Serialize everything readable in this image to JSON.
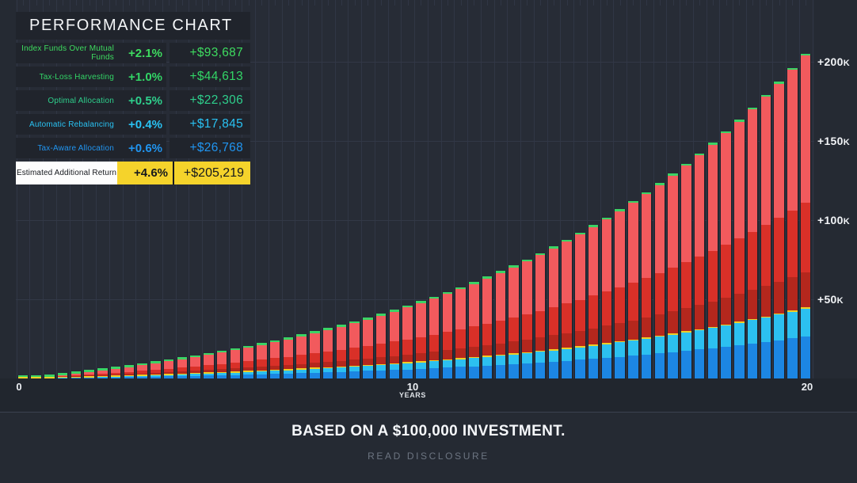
{
  "legend": {
    "title": "PERFORMANCE CHART",
    "rows": [
      {
        "label": "Index Funds Over Mutual Funds",
        "percent": "+2.1%",
        "amount": "+$93,687",
        "color": "#3edc60"
      },
      {
        "label": "Tax-Loss Harvesting",
        "percent": "+1.0%",
        "amount": "+$44,613",
        "color": "#32d566"
      },
      {
        "label": "Optimal Allocation",
        "percent": "+0.5%",
        "amount": "+$22,306",
        "color": "#2ecf8c"
      },
      {
        "label": "Automatic Rebalancing",
        "percent": "+0.4%",
        "amount": "+$17,845",
        "color": "#29c2f3"
      },
      {
        "label": "Tax-Aware Allocation",
        "percent": "+0.6%",
        "amount": "+$26,768",
        "color": "#2095f0"
      }
    ],
    "total_row": {
      "label": "Estimated Additional Return",
      "percent": "+4.6%",
      "amount": "+$205,219",
      "highlight_color": "#f5d32b",
      "label_bg": "#fdfdfd",
      "text_color": "#15181d"
    }
  },
  "chart_data": {
    "type": "bar",
    "stacked": true,
    "title": "PERFORMANCE CHART",
    "xlabel": "YEARS",
    "x_ticks": [
      "0",
      "10",
      "20"
    ],
    "x_range_years": [
      0,
      20
    ],
    "bars_per_year": 3,
    "y_ticks": [
      {
        "label": "+50K",
        "value": 50000
      },
      {
        "label": "+100K",
        "value": 100000
      },
      {
        "label": "+150K",
        "value": 150000
      },
      {
        "label": "+200K",
        "value": 200000
      }
    ],
    "y_range": [
      0,
      239000
    ],
    "dollars_per_pixel": 500,
    "grid": true,
    "legend_position": "top-left",
    "series": [
      {
        "name": "Tax-Aware Allocation",
        "final_value": 26768,
        "color": "#1c86e3"
      },
      {
        "name": "Automatic Rebalancing",
        "final_value": 17845,
        "color": "#2cc0f0"
      },
      {
        "name": "Optimal Allocation",
        "final_value": 22306,
        "color": "#b4271d"
      },
      {
        "name": "Tax-Loss Harvesting",
        "final_value": 44613,
        "color": "#d93028"
      },
      {
        "name": "Index Funds Over Mutual Funds",
        "final_value": 93687,
        "color": "#f25a5d"
      }
    ],
    "caps": {
      "blue_group_cap_color": "#f0cf26",
      "top_cap_color": "#3bd465"
    },
    "final_total": 205219,
    "growth_model": {
      "formula": "amount(t_years) = scale * (rate^t - 1)",
      "scale": 18735,
      "rate_per_year": 1.132
    },
    "totals_by_year": [
      2473,
      5272,
      8441,
      12031,
      16092,
      20689,
      25893,
      31784,
      38452,
      46001,
      54546,
      64219,
      75169,
      87564,
      101596,
      117479,
      135460,
      155813,
      178854,
      205219
    ]
  },
  "footer": {
    "headline": "BASED ON A $100,000 INVESTMENT.",
    "link": "READ DISCLOSURE"
  }
}
